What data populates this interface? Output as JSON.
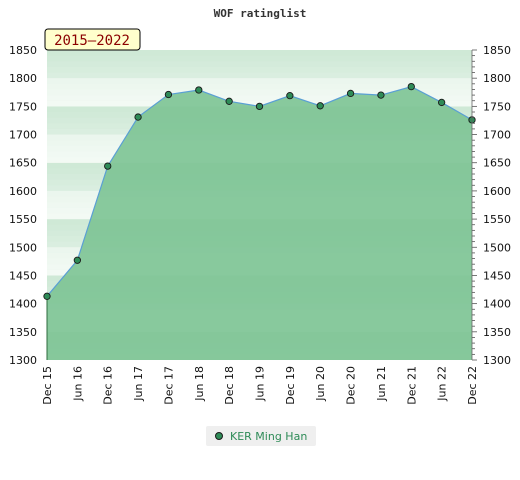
{
  "chart_data": {
    "type": "area",
    "title": "WOF ratinglist",
    "period_label": "2015–2022",
    "categories": [
      "Dec 15",
      "Jun 16",
      "Dec 16",
      "Jun 17",
      "Dec 17",
      "Jun 18",
      "Dec 18",
      "Jun 19",
      "Dec 19",
      "Jun 20",
      "Dec 20",
      "Jun 21",
      "Dec 21",
      "Jun 22",
      "Dec 22"
    ],
    "series": [
      {
        "name": "KER Ming Han",
        "values": [
          1413,
          1477,
          1644,
          1731,
          1771,
          1779,
          1759,
          1750,
          1769,
          1751,
          1773,
          1770,
          1785,
          1757,
          1726
        ]
      }
    ],
    "ylim": [
      1300,
      1850
    ],
    "yticks": [
      1300,
      1350,
      1400,
      1450,
      1500,
      1550,
      1600,
      1650,
      1700,
      1750,
      1800,
      1850
    ],
    "grid": false,
    "legend_position": "bottom",
    "colors": {
      "area_fill": "#7cc394",
      "line": "#5a9fd4",
      "marker": "#2e8b57",
      "legend_text": "#2e8b57",
      "band_dark": "#cfe9d6",
      "band_light": "#ffffff",
      "period_box_bg": "#ffffcc",
      "period_box_text": "#8b0000"
    }
  }
}
